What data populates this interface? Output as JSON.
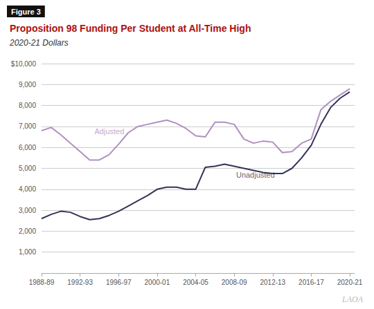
{
  "chart_data": {
    "type": "line",
    "figure_label": "Figure 3",
    "title": "Proposition 98 Funding Per Student at All-Time High",
    "subtitle": "2020-21 Dollars",
    "watermark": "LAOA",
    "x": [
      1988,
      1989,
      1990,
      1991,
      1992,
      1993,
      1994,
      1995,
      1996,
      1997,
      1998,
      1999,
      2000,
      2001,
      2002,
      2003,
      2004,
      2005,
      2006,
      2007,
      2008,
      2009,
      2010,
      2011,
      2012,
      2013,
      2014,
      2015,
      2016,
      2017,
      2018,
      2019,
      2020
    ],
    "series": [
      {
        "color": "#b090c0",
        "values": [
          6800,
          6950,
          6600,
          6200,
          5800,
          5400,
          5400,
          5650,
          6150,
          6700,
          7000,
          7100,
          7200,
          7300,
          7150,
          6900,
          6550,
          6500,
          7200,
          7200,
          7100,
          6400,
          6200,
          6300,
          6250,
          5750,
          5800,
          6200,
          6400,
          7800,
          8200,
          8500,
          8800
        ]
      },
      {
        "color": "#333355",
        "values": [
          2600,
          2800,
          2950,
          2900,
          2700,
          2550,
          2600,
          2750,
          2950,
          3200,
          3450,
          3700,
          4000,
          4100,
          4100,
          4000,
          4000,
          5050,
          5100,
          5200,
          5100,
          5000,
          4900,
          4800,
          4750,
          4750,
          5000,
          5500,
          6100,
          7100,
          7900,
          8350,
          8650
        ]
      }
    ],
    "annotations": [
      {
        "text": "Adjusted",
        "x": 1993.5,
        "y": 6600,
        "color": "#b090c0"
      },
      {
        "text": "Unadjusted",
        "x": 2008.2,
        "y": 4500,
        "color": "#333355"
      }
    ],
    "xlim": [
      1988,
      2020.5
    ],
    "xticks": [
      {
        "value": 1988,
        "label": "1988-89"
      },
      {
        "value": 1992,
        "label": "1992-93"
      },
      {
        "value": 1996,
        "label": "1996-97"
      },
      {
        "value": 2000,
        "label": "2000-01"
      },
      {
        "value": 2004,
        "label": "2004-05"
      },
      {
        "value": 2008,
        "label": "2008-09"
      },
      {
        "value": 2012,
        "label": "2012-13"
      },
      {
        "value": 2016,
        "label": "2016-17"
      },
      {
        "value": 2020,
        "label": "2020-21"
      }
    ],
    "ylim": [
      0,
      10000
    ],
    "yticks": [
      {
        "value": 0,
        "label": ""
      },
      {
        "value": 1000,
        "label": "1,000"
      },
      {
        "value": 2000,
        "label": "2,000"
      },
      {
        "value": 3000,
        "label": "3,000"
      },
      {
        "value": 4000,
        "label": "4,000"
      },
      {
        "value": 5000,
        "label": "5,000"
      },
      {
        "value": 6000,
        "label": "6,000"
      },
      {
        "value": 7000,
        "label": "7,000"
      },
      {
        "value": 8000,
        "label": "8,000"
      },
      {
        "value": 9000,
        "label": "9,000"
      },
      {
        "value": 10000,
        "label": "$10,000"
      }
    ],
    "grid": true
  }
}
